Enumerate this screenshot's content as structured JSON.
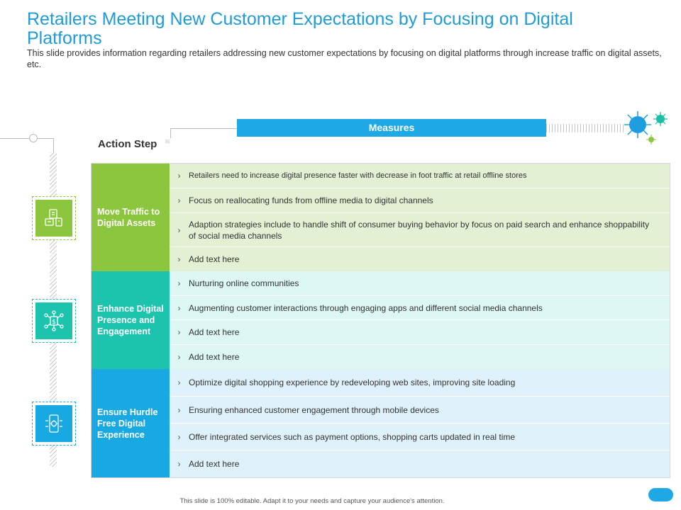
{
  "header": {
    "title": "Retailers Meeting New Customer Expectations by Focusing on Digital Platforms",
    "subtitle": "This slide provides information regarding retailers addressing new customer expectations by focusing on digital platforms through increase traffic on digital assets, etc."
  },
  "labels": {
    "action_step": "Action Step",
    "measures": "Measures"
  },
  "colors": {
    "accent_blue": "#1ea8e6",
    "title_blue": "#1f9bd6",
    "green": "#8cc63f",
    "teal": "#1cc4ae",
    "sky": "#18a9e3",
    "virus_blue": "#1e9ee0",
    "virus_teal": "#1bbfa3",
    "virus_green": "#8cc63f"
  },
  "groups": [
    {
      "label": "Move Traffic to Digital Assets",
      "icon": "digital-assets-icon",
      "rows": [
        "Retailers need to increase digital presence faster with decrease in foot traffic at retail offline stores",
        "Focus on reallocating funds from offline media to digital channels",
        "Adaption strategies include to handle shift of consumer buying behavior by focus on paid search and enhance shoppability of social media channels",
        "Add text here"
      ]
    },
    {
      "label": "Enhance Digital Presence and Engagement",
      "icon": "dollar-network-icon",
      "rows": [
        "Nurturing online communities",
        "Augmenting customer interactions through engaging apps and different social media channels",
        "Add text here",
        "Add text here"
      ]
    },
    {
      "label": "Ensure Hurdle Free Digital Experience",
      "icon": "mobile-settings-icon",
      "rows": [
        "Optimize digital shopping experience by redeveloping web sites, improving site loading",
        "Ensuring enhanced customer engagement through mobile devices",
        "Offer integrated services such as payment options, shopping carts updated in real time",
        "Add text here"
      ]
    }
  ],
  "footer": {
    "text": "This slide is 100% editable. Adapt it to your needs and capture your audience's attention."
  }
}
